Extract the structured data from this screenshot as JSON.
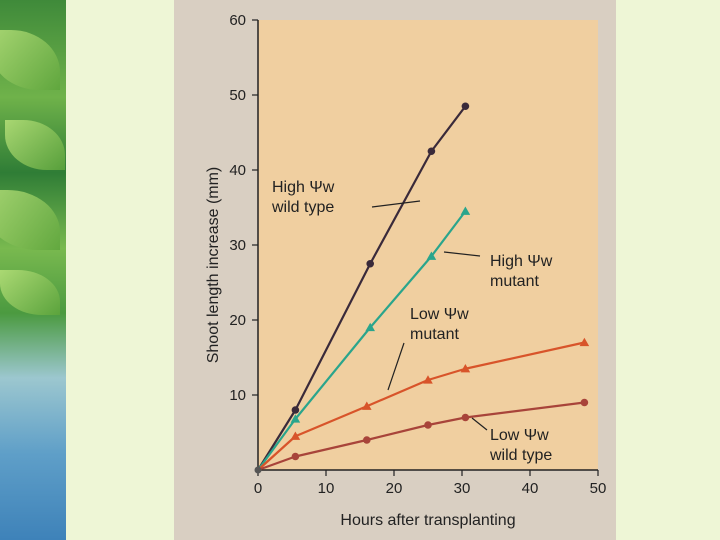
{
  "chart_data": {
    "type": "line",
    "xlabel": "Hours after transplanting",
    "ylabel": "Shoot length increase (mm)",
    "xlim": [
      0,
      50
    ],
    "ylim": [
      0,
      60
    ],
    "xticks": [
      0,
      10,
      20,
      30,
      40,
      50
    ],
    "yticks": [
      10,
      20,
      30,
      40,
      50,
      60
    ],
    "grid": false,
    "series": [
      {
        "name": "High Ψw wild type",
        "color": "#3a2a3a",
        "marker": "circle",
        "x": [
          0,
          5.5,
          16.5,
          25.5,
          30.5
        ],
        "y": [
          0,
          8,
          27.5,
          42.5,
          48.5
        ]
      },
      {
        "name": "High Ψw mutant",
        "color": "#2aa58c",
        "marker": "triangle",
        "x": [
          0,
          5.5,
          16.5,
          25.5,
          30.5
        ],
        "y": [
          0,
          6.8,
          19,
          28.5,
          34.5
        ]
      },
      {
        "name": "Low Ψw mutant",
        "color": "#d8542a",
        "marker": "triangle",
        "x": [
          0,
          5.5,
          16,
          25,
          30.5,
          48
        ],
        "y": [
          0,
          4.5,
          8.5,
          12,
          13.5,
          17
        ]
      },
      {
        "name": "Low Ψw wild type",
        "color": "#a8443a",
        "marker": "circle",
        "x": [
          0,
          5.5,
          16,
          25,
          30.5,
          48
        ],
        "y": [
          0,
          1.8,
          4,
          6,
          7,
          9
        ]
      }
    ],
    "annotations": [
      {
        "lines": [
          "High Ψw",
          "wild type"
        ]
      },
      {
        "lines": [
          "High Ψw",
          "mutant"
        ]
      },
      {
        "lines": [
          "Low Ψw",
          "mutant"
        ]
      },
      {
        "lines": [
          "Low Ψw",
          "wild type"
        ]
      }
    ]
  }
}
